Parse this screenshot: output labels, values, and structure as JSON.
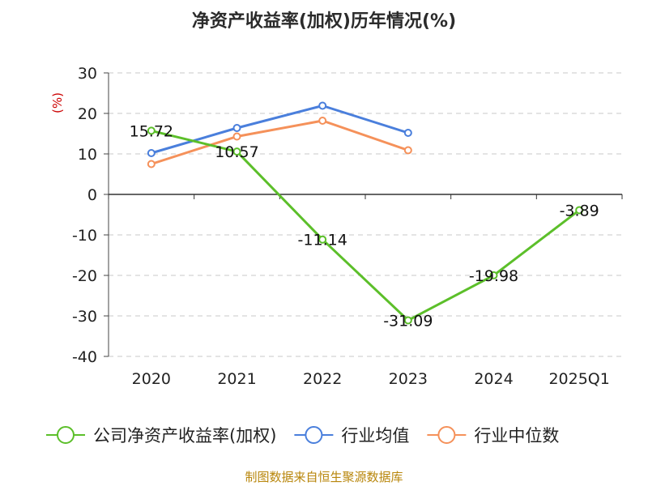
{
  "chart_data": {
    "type": "line",
    "title": "净资产收益率(加权)历年情况(%)",
    "ylabel": "(%)",
    "xlabel": "",
    "categories": [
      "2020",
      "2021",
      "2022",
      "2023",
      "2024",
      "2025Q1"
    ],
    "ylim": [
      -40,
      30
    ],
    "yticks": [
      30,
      20,
      10,
      0,
      -10,
      -20,
      -30,
      -40
    ],
    "grid": true,
    "legend_position": "bottom",
    "series": [
      {
        "name": "公司净资产收益率(加权)",
        "color": "#5cbf2a",
        "values": [
          15.72,
          10.57,
          -11.14,
          -31.09,
          -19.98,
          -3.89
        ],
        "labels": [
          "15.72",
          "10.57",
          "-11.14",
          "-31.09",
          "-19.98",
          "-3.89"
        ]
      },
      {
        "name": "行业均值",
        "color": "#4a7fdc",
        "values": [
          10.2,
          16.4,
          21.9,
          15.2,
          null,
          null
        ]
      },
      {
        "name": "行业中位数",
        "color": "#f5915a",
        "values": [
          7.5,
          14.3,
          18.2,
          10.9,
          null,
          null
        ]
      }
    ],
    "source": "制图数据来自恒生聚源数据库"
  }
}
